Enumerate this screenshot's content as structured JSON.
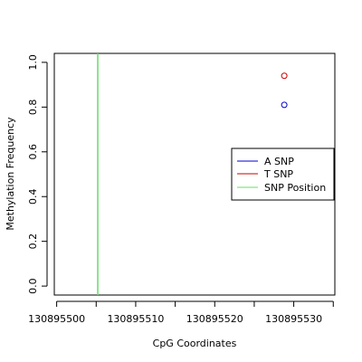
{
  "chart_data": {
    "type": "scatter",
    "title": "",
    "xlabel": "CpG Coordinates",
    "ylabel": "Methylation Frequency",
    "xlim": [
      130895499.7,
      130895535.2
    ],
    "ylim": [
      -0.04,
      1.04
    ],
    "x_ticks": [
      130895500,
      130895510,
      130895520,
      130895530
    ],
    "x_tick_labels": [
      "130895500",
      "130895510",
      "130895520",
      "130895530"
    ],
    "x_minor_ticks": [
      130895505,
      130895515,
      130895525,
      130895535
    ],
    "y_ticks": [
      0.0,
      0.2,
      0.4,
      0.6,
      0.8,
      1.0
    ],
    "y_tick_labels": [
      "0.0",
      "0.2",
      "0.4",
      "0.6",
      "0.8",
      "1.0"
    ],
    "grid": false,
    "legend_position": "right",
    "series": [
      {
        "name": "A SNP",
        "color": "#0000cc",
        "points": [
          {
            "x": 130895528.8,
            "y": 0.81
          }
        ]
      },
      {
        "name": "T SNP",
        "color": "#cc0000",
        "points": [
          {
            "x": 130895528.8,
            "y": 0.94
          }
        ]
      }
    ],
    "snp_position": {
      "name": "SNP Position",
      "color": "#66dd66",
      "x": 130895505.2
    },
    "legend": [
      {
        "label": "A SNP",
        "color": "#0000cc"
      },
      {
        "label": "T SNP",
        "color": "#cc0000"
      },
      {
        "label": "SNP Position",
        "color": "#66dd66"
      }
    ]
  }
}
